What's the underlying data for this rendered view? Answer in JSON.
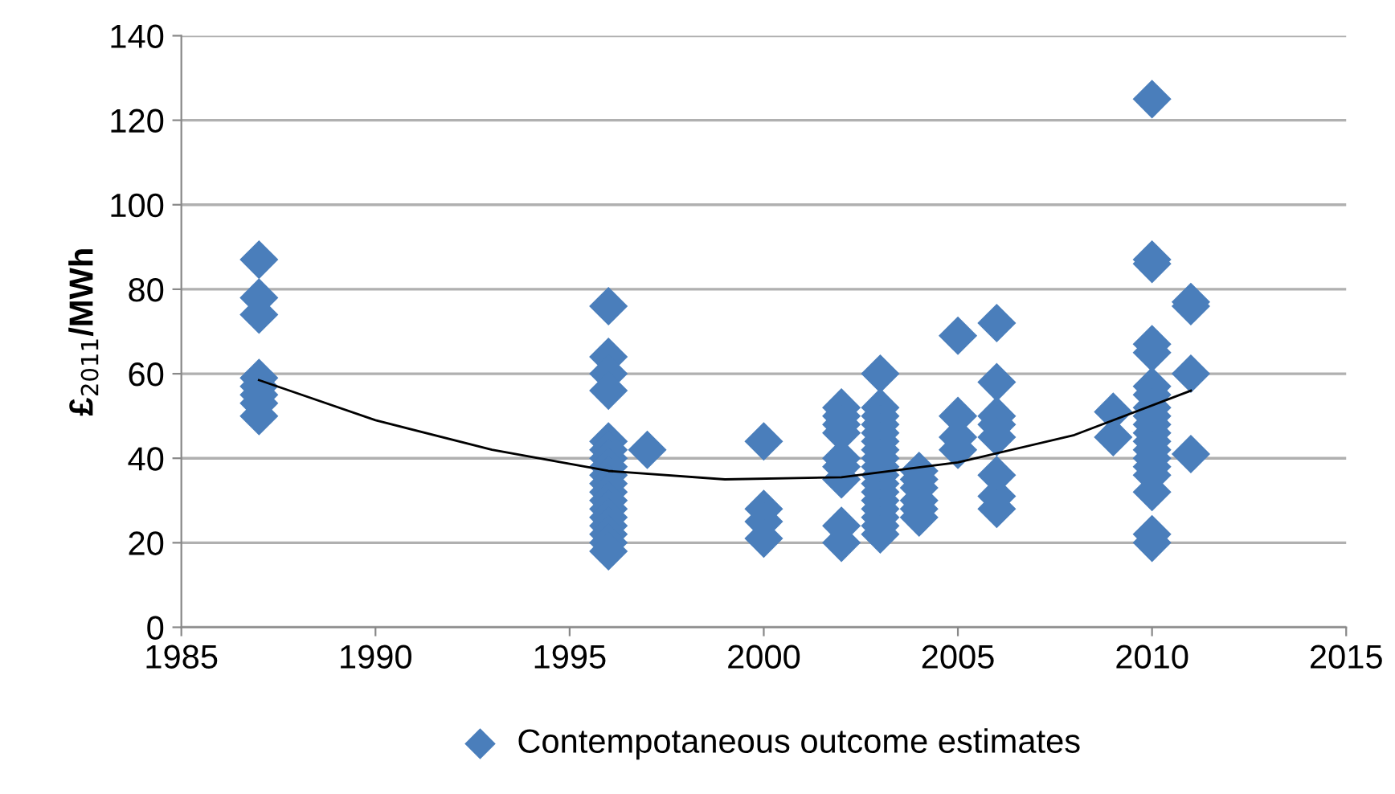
{
  "chart_data": {
    "type": "scatter",
    "ylabel": "£$_{2011}$/MWh",
    "xlim": [
      1985,
      2015
    ],
    "xticks": [
      1985,
      1990,
      1995,
      2000,
      2005,
      2010,
      2015
    ],
    "ylim": [
      0,
      140
    ],
    "yticks": [
      0,
      20,
      40,
      60,
      80,
      100,
      120,
      140
    ],
    "grid": "y",
    "legend": "bottom",
    "marker": "diamond",
    "series": [
      {
        "name": "Contempotaneous outcome estimates",
        "color": "#4a7ebb",
        "x": [
          1987,
          1987,
          1987,
          1987,
          1987,
          1987,
          1987,
          1987,
          1996,
          1996,
          1996,
          1996,
          1996,
          1996,
          1996,
          1996,
          1996,
          1996,
          1996,
          1996,
          1996,
          1996,
          1996,
          1996,
          1996,
          1996,
          1997,
          2000,
          2000,
          2000,
          2000,
          2002,
          2002,
          2002,
          2002,
          2002,
          2002,
          2002,
          2002,
          2002,
          2003,
          2003,
          2003,
          2003,
          2003,
          2003,
          2003,
          2003,
          2003,
          2003,
          2003,
          2003,
          2003,
          2003,
          2003,
          2003,
          2003,
          2004,
          2004,
          2004,
          2004,
          2004,
          2004,
          2005,
          2005,
          2005,
          2005,
          2006,
          2006,
          2006,
          2006,
          2006,
          2006,
          2006,
          2006,
          2009,
          2009,
          2010,
          2010,
          2010,
          2010,
          2010,
          2010,
          2010,
          2010,
          2010,
          2010,
          2010,
          2010,
          2010,
          2010,
          2010,
          2010,
          2010,
          2010,
          2010,
          2011,
          2011,
          2011,
          2011
        ],
        "values": [
          87,
          78,
          74,
          59,
          57,
          55,
          53,
          50,
          76,
          64,
          60,
          56,
          44,
          42,
          40,
          38,
          36,
          34,
          32,
          30,
          28,
          26,
          24,
          22,
          20,
          18,
          42,
          44,
          28,
          25,
          21,
          52,
          50,
          48,
          46,
          40,
          38,
          35,
          24,
          20,
          60,
          52,
          50,
          48,
          46,
          44,
          42,
          40,
          38,
          36,
          34,
          32,
          30,
          28,
          26,
          24,
          22,
          37,
          35,
          33,
          30,
          28,
          26,
          69,
          50,
          45,
          42,
          72,
          58,
          50,
          48,
          45,
          36,
          31,
          28,
          51,
          45,
          125,
          87,
          86,
          67,
          65,
          57,
          55,
          52,
          50,
          48,
          46,
          44,
          42,
          40,
          38,
          36,
          32,
          22,
          20,
          77,
          76,
          60,
          41
        ]
      },
      {
        "type": "line",
        "color": "#000000",
        "marker": "none",
        "x": [
          1987,
          1990,
          1993,
          1996,
          1999,
          2002,
          2005,
          2008,
          2011
        ],
        "values": [
          58.5,
          49,
          42,
          37,
          35,
          35.5,
          39,
          45.5,
          56
        ]
      }
    ]
  }
}
